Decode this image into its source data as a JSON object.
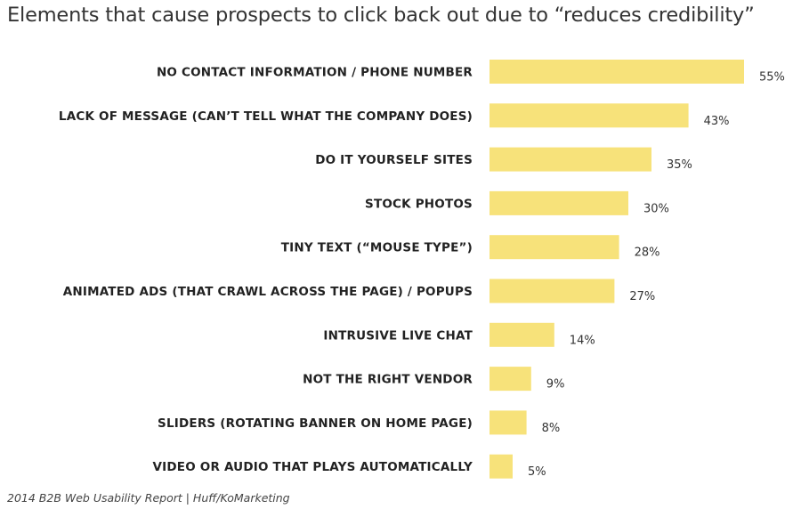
{
  "chart_data": {
    "type": "bar",
    "orientation": "horizontal",
    "title": "Elements that cause prospects to click back out due to “reduces credibility”",
    "categories": [
      "NO CONTACT INFORMATION / PHONE NUMBER",
      "LACK OF MESSAGE (CAN’T TELL WHAT THE COMPANY DOES)",
      "DO IT YOURSELF SITES",
      "STOCK PHOTOS",
      "TINY TEXT (“MOUSE TYPE”)",
      "ANIMATED ADS (THAT CRAWL ACROSS THE PAGE) / POPUPS",
      "INTRUSIVE LIVE CHAT",
      "NOT THE RIGHT VENDOR",
      "SLIDERS (ROTATING BANNER ON HOME PAGE)",
      "VIDEO OR AUDIO THAT PLAYS AUTOMATICALLY"
    ],
    "values": [
      55,
      43,
      35,
      30,
      28,
      27,
      14,
      9,
      8,
      5
    ],
    "value_labels": [
      "55%",
      "43%",
      "35%",
      "30%",
      "28%",
      "27%",
      "14%",
      "9%",
      "8%",
      "5%"
    ],
    "xlim": [
      0,
      55
    ],
    "grid": false,
    "legend": "none",
    "bar_color": "#f7e27a"
  },
  "source": "2014 B2B Web Usability Report | Huff/KoMarketing"
}
